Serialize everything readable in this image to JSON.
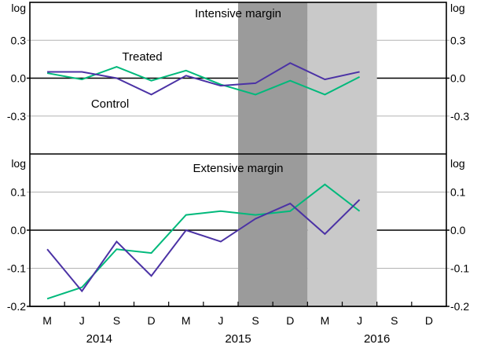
{
  "figure": {
    "kind": "two-panel-quarterly-line-chart",
    "background": "#FFFFFF"
  },
  "chart_data": [
    {
      "type": "line",
      "title": "Intensive margin",
      "unit_label_left": "log",
      "unit_label_right": "log",
      "ylim": [
        -0.6,
        0.6
      ],
      "yticks": [
        0.3,
        0.0,
        -0.3
      ],
      "x": [
        "M 2014",
        "J 2014",
        "S 2014",
        "D 2014",
        "M 2015",
        "J 2015",
        "S 2015",
        "D 2015",
        "M 2016",
        "J 2016"
      ],
      "series": [
        {
          "name": "Treated",
          "color": "#00B97B",
          "values": [
            0.04,
            -0.01,
            0.09,
            -0.02,
            0.06,
            -0.05,
            -0.13,
            -0.02,
            -0.13,
            0.01
          ]
        },
        {
          "name": "Control",
          "color": "#4B32A5",
          "values": [
            0.05,
            0.05,
            0.0,
            -0.13,
            0.02,
            -0.06,
            -0.04,
            0.12,
            -0.01,
            0.05
          ]
        }
      ],
      "legend_position": "inline-labels"
    },
    {
      "type": "line",
      "title": "Extensive margin",
      "unit_label_left": "log",
      "unit_label_right": "log",
      "ylim": [
        -0.2,
        0.2
      ],
      "yticks": [
        0.1,
        0.0,
        -0.1,
        -0.2
      ],
      "x": [
        "M 2014",
        "J 2014",
        "S 2014",
        "D 2014",
        "M 2015",
        "J 2015",
        "S 2015",
        "D 2015",
        "M 2016",
        "J 2016"
      ],
      "series": [
        {
          "name": "Treated",
          "color": "#00B97B",
          "values": [
            -0.18,
            -0.15,
            -0.05,
            -0.06,
            0.04,
            0.05,
            0.04,
            0.05,
            0.12,
            0.05
          ]
        },
        {
          "name": "Control",
          "color": "#4B32A5",
          "values": [
            -0.05,
            -0.16,
            -0.03,
            -0.12,
            0.0,
            -0.03,
            0.03,
            0.07,
            -0.01,
            0.08
          ]
        }
      ],
      "legend_position": "inline-labels"
    }
  ],
  "x_axis": {
    "month_tick_labels": [
      "M",
      "J",
      "S",
      "D",
      "M",
      "J",
      "S",
      "D",
      "M",
      "J",
      "S",
      "D"
    ],
    "year_labels": [
      {
        "text": "2014",
        "boundary_index": 2
      },
      {
        "text": "2015",
        "boundary_index": 6
      },
      {
        "text": "2016",
        "boundary_index": 10
      }
    ],
    "quarters_shown": 12,
    "grid": "off"
  },
  "inline_series_labels": [
    {
      "text": "Treated",
      "color": "#00B97B",
      "panel": 0
    },
    {
      "text": "Control",
      "color": "#4B32A5",
      "panel": 0
    }
  ],
  "shaded_bands": [
    {
      "name": "dark-shaded-band",
      "color": "#9B9B9B",
      "from_boundary": 6,
      "to_boundary": 8
    },
    {
      "name": "light-shaded-band",
      "color": "#C9C9C9",
      "from_boundary": 8,
      "to_boundary": 10
    }
  ],
  "styles": {
    "gridline_color": "#B3B3B3",
    "axis_color": "#000000",
    "treated_color": "#00B97B",
    "control_color": "#4B32A5"
  }
}
